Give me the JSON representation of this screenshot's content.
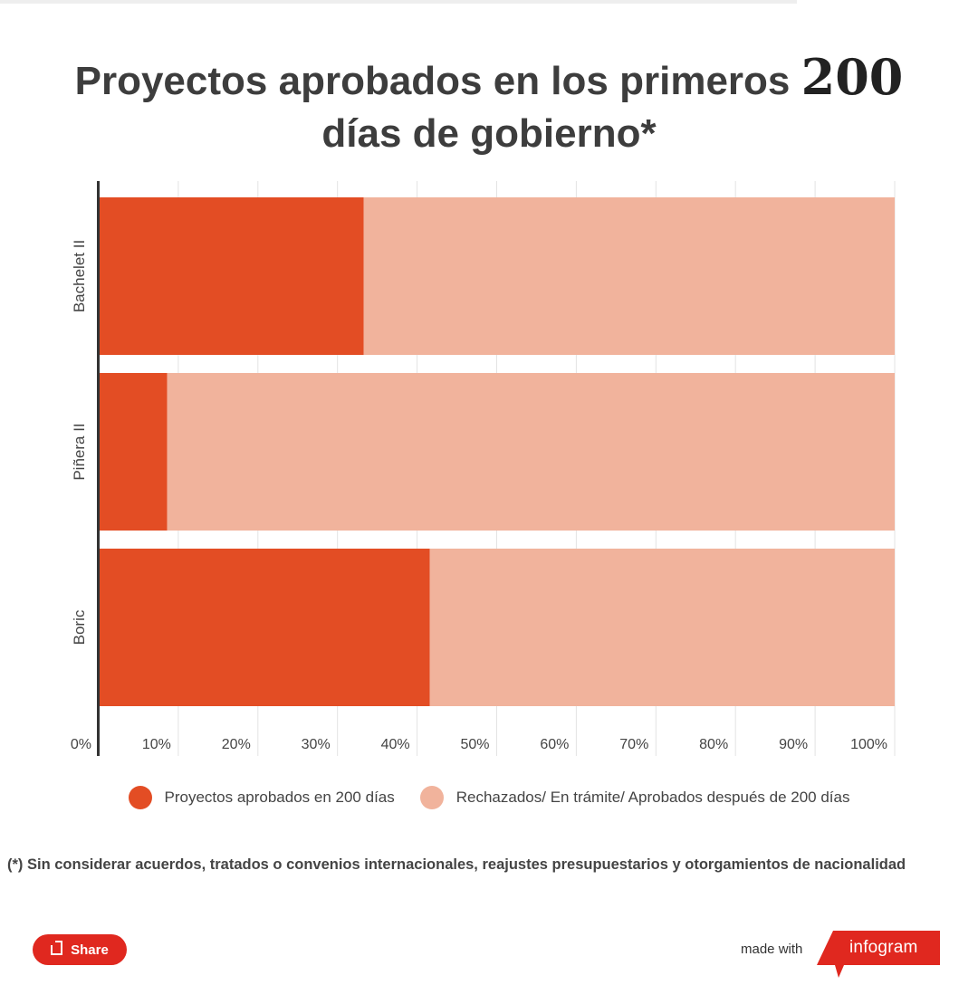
{
  "title": {
    "line1_text": "Proyectos aprobados en los primeros",
    "line1_number": "200",
    "line2": "días de gobierno*"
  },
  "chart_data": {
    "type": "bar",
    "orientation": "horizontal",
    "stacked": true,
    "categories": [
      "Bachelet II",
      "Piñera II",
      "Boric"
    ],
    "series": [
      {
        "name": "Proyectos aprobados en 200 días",
        "color": "#e34d24",
        "values": [
          33.3,
          8.6,
          41.6
        ]
      },
      {
        "name": "Rechazados/ En trámite/ Aprobados después de 200 días",
        "color": "#f1b39c",
        "values": [
          66.7,
          91.4,
          58.4
        ]
      }
    ],
    "x_ticks": [
      "0%",
      "10%",
      "20%",
      "30%",
      "40%",
      "50%",
      "60%",
      "70%",
      "80%",
      "90%",
      "100%"
    ],
    "xlim": [
      0,
      100
    ],
    "grid": true,
    "legend_position": "bottom"
  },
  "legend": {
    "items": [
      {
        "label": "Proyectos aprobados en 200 días",
        "color": "#e34d24"
      },
      {
        "label": "Rechazados/ En trámite/ Aprobados después de 200 días",
        "color": "#f1b39c"
      }
    ]
  },
  "footnote": "(*) Sin considerar acuerdos, tratados o convenios internacionales, reajustes presupuestarios y otorgamientos de nacionalidad",
  "footer": {
    "share_label": "Share",
    "share_icon": "share-icon",
    "made_with": "made with",
    "brand": "infogram",
    "brand_color": "#e0281f"
  }
}
